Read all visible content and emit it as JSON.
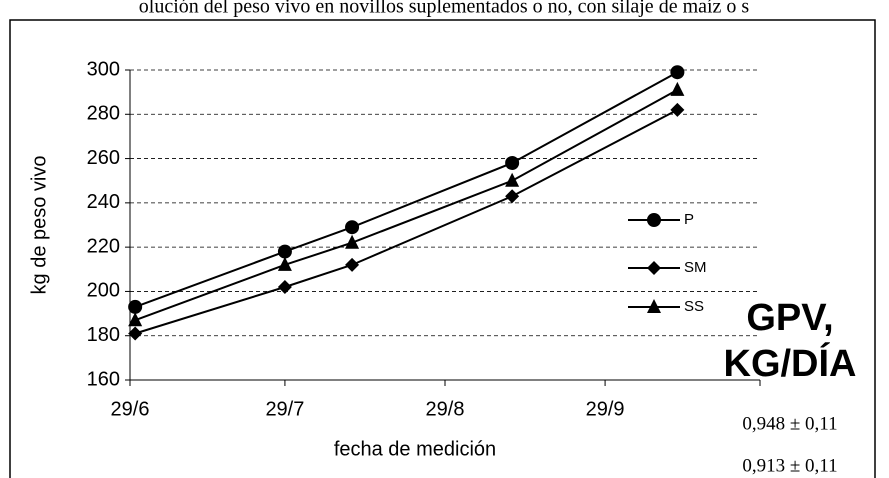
{
  "chart_data": {
    "type": "line",
    "title": "olución del peso vivo en novillos suplementados o no, con silaje de maíz o s",
    "x_label": "fecha de medición",
    "y_label": "kg de peso vivo",
    "x": [
      1,
      30,
      43,
      74,
      106
    ],
    "xlim": [
      0,
      122
    ],
    "xticks": [
      {
        "value": 0,
        "label": "29/6"
      },
      {
        "value": 30,
        "label": "29/7"
      },
      {
        "value": 61,
        "label": "29/8"
      },
      {
        "value": 92,
        "label": "29/9"
      }
    ],
    "ylim": [
      160,
      300
    ],
    "yticks": [
      160,
      180,
      200,
      220,
      240,
      260,
      280,
      300
    ],
    "grid": true,
    "series": [
      {
        "name": "P",
        "color": "#000000",
        "marker": "circle",
        "values": [
          193,
          218,
          229,
          258,
          299
        ]
      },
      {
        "name": "SM",
        "color": "#000000",
        "marker": "diamond",
        "values": [
          181,
          202,
          212,
          243,
          282
        ]
      },
      {
        "name": "SS",
        "color": "#000000",
        "marker": "triangle",
        "values": [
          187,
          212,
          222,
          250,
          291
        ]
      }
    ],
    "side_title": [
      "GPV,",
      "KG/DÍA"
    ],
    "side_values": [
      "0,948 ± 0,11",
      "0,913 ± 0,11"
    ]
  }
}
